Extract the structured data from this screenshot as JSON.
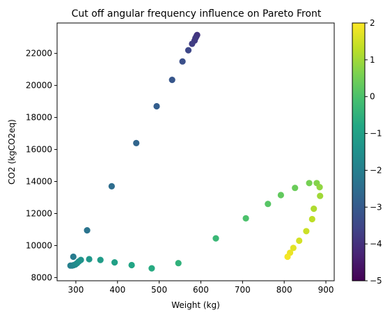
{
  "chart_data": {
    "type": "scatter",
    "title": "Cut off angular frequency influence on Pareto Front",
    "xlabel": "Weight (kg)",
    "ylabel": "CO2  (kgCO2eq)",
    "xlim": [
      255,
      920
    ],
    "ylim": [
      7800,
      23900
    ],
    "xticks": [
      300,
      400,
      500,
      600,
      700,
      800,
      900
    ],
    "yticks": [
      8000,
      10000,
      12000,
      14000,
      16000,
      18000,
      20000,
      22000
    ],
    "grid": false,
    "colormap": "viridis",
    "colorbar": {
      "range": [
        -5,
        2
      ],
      "ticks": [
        -5,
        -4,
        -3,
        -2,
        -1,
        0,
        1,
        2
      ]
    },
    "points": [
      {
        "x": 591,
        "y": 23150,
        "c": -3.9
      },
      {
        "x": 589,
        "y": 23050,
        "c": -3.9
      },
      {
        "x": 587,
        "y": 22950,
        "c": -3.8
      },
      {
        "x": 585,
        "y": 22800,
        "c": -3.8
      },
      {
        "x": 579,
        "y": 22600,
        "c": -3.7
      },
      {
        "x": 570,
        "y": 22200,
        "c": -3.5
      },
      {
        "x": 556,
        "y": 21500,
        "c": -3.3
      },
      {
        "x": 531,
        "y": 20350,
        "c": -3.1
      },
      {
        "x": 494,
        "y": 18700,
        "c": -2.9
      },
      {
        "x": 445,
        "y": 16400,
        "c": -2.7
      },
      {
        "x": 386,
        "y": 13700,
        "c": -2.5
      },
      {
        "x": 327,
        "y": 10950,
        "c": -2.3
      },
      {
        "x": 294,
        "y": 9300,
        "c": -2.1
      },
      {
        "x": 287,
        "y": 8750,
        "c": -2.0
      },
      {
        "x": 291,
        "y": 8750,
        "c": -1.9
      },
      {
        "x": 295,
        "y": 8780,
        "c": -1.8
      },
      {
        "x": 299,
        "y": 8820,
        "c": -1.7
      },
      {
        "x": 303,
        "y": 8900,
        "c": -1.6
      },
      {
        "x": 307,
        "y": 9000,
        "c": -1.5
      },
      {
        "x": 312,
        "y": 9100,
        "c": -1.4
      },
      {
        "x": 332,
        "y": 9150,
        "c": -1.3
      },
      {
        "x": 359,
        "y": 9100,
        "c": -1.15
      },
      {
        "x": 393,
        "y": 8950,
        "c": -1.0
      },
      {
        "x": 434,
        "y": 8780,
        "c": -0.85
      },
      {
        "x": 482,
        "y": 8580,
        "c": -0.7
      },
      {
        "x": 546,
        "y": 8900,
        "c": -0.5
      },
      {
        "x": 636,
        "y": 10450,
        "c": -0.3
      },
      {
        "x": 708,
        "y": 11700,
        "c": 0.0
      },
      {
        "x": 761,
        "y": 12600,
        "c": 0.15
      },
      {
        "x": 792,
        "y": 13150,
        "c": 0.3
      },
      {
        "x": 826,
        "y": 13600,
        "c": 0.4
      },
      {
        "x": 860,
        "y": 13900,
        "c": 0.55
      },
      {
        "x": 878,
        "y": 13900,
        "c": 0.7
      },
      {
        "x": 885,
        "y": 13650,
        "c": 0.85
      },
      {
        "x": 886,
        "y": 13100,
        "c": 1.0
      },
      {
        "x": 871,
        "y": 12300,
        "c": 1.15
      },
      {
        "x": 867,
        "y": 11650,
        "c": 1.3
      },
      {
        "x": 853,
        "y": 10900,
        "c": 1.45
      },
      {
        "x": 836,
        "y": 10300,
        "c": 1.55
      },
      {
        "x": 822,
        "y": 9850,
        "c": 1.7
      },
      {
        "x": 814,
        "y": 9550,
        "c": 1.8
      },
      {
        "x": 808,
        "y": 9300,
        "c": 1.9
      }
    ]
  }
}
